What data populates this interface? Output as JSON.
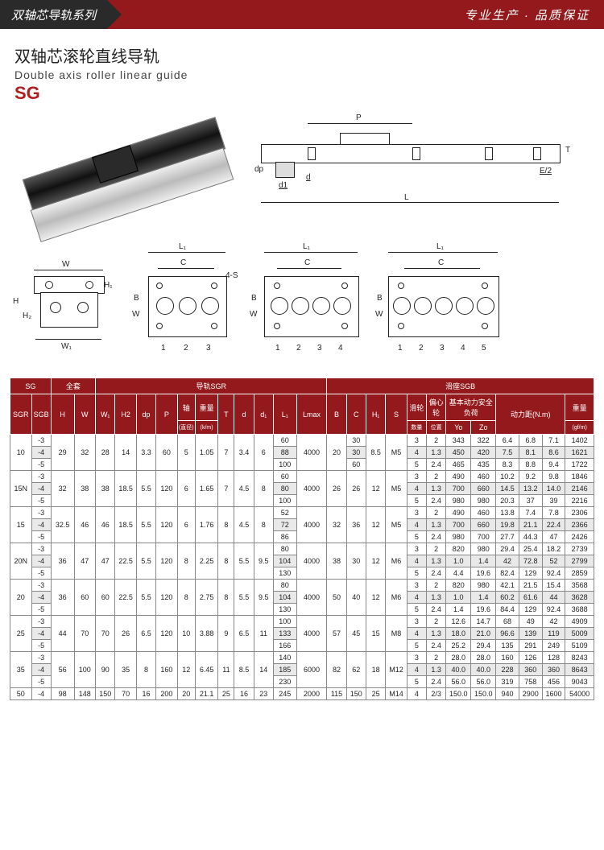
{
  "header": {
    "left": "双轴芯导轨系列",
    "right": "专业生产 · 品质保证"
  },
  "title": {
    "cn": "双轴芯滚轮直线导轨",
    "en": "Double axis roller linear guide",
    "code": "SG"
  },
  "diagramLabels": {
    "P": "P",
    "T": "T",
    "dp": "dp",
    "d1": "d1",
    "d": "d",
    "L": "L",
    "E2": "E/2",
    "W": "W",
    "W1": "W₁",
    "H": "H",
    "H1": "H₁",
    "H2": "H₂",
    "L1": "L₁",
    "C": "C",
    "B": "B",
    "S4": "4-S"
  },
  "blockNumbers": {
    "b3": [
      "1",
      "2",
      "3"
    ],
    "b4": [
      "1",
      "2",
      "3",
      "4"
    ],
    "b5": [
      "1",
      "2",
      "3",
      "4",
      "5"
    ]
  },
  "tableHeader": {
    "sg": "SG",
    "full": "全套",
    "sgr": "导轨SGR",
    "sgb": "滑座SGB",
    "sgrCol": "SGR",
    "sgbCol": "SGB",
    "H": "H",
    "W": "W",
    "W1": "W₁",
    "H2": "H2",
    "dp": "dp",
    "P": "P",
    "axis": "轴",
    "axisSub": "(直径)",
    "weight": "重量",
    "weightSub": "(k/m)",
    "T": "T",
    "d": "d",
    "d1": "d₁",
    "L1": "L₁",
    "Lmax": "Lmax",
    "B": "B",
    "C": "C",
    "H1": "H₁",
    "S": "S",
    "rollers": "滑轮",
    "rollersSub": "数量",
    "ecc": "偏心轮",
    "eccSub": "位置",
    "basic": "基本动力安全负荷",
    "Yo": "Yo",
    "Zo": "Zo",
    "torque": "动力距(N.m)",
    "wt2": "重量",
    "wt2Sub": "(gf/m)"
  },
  "rows": [
    {
      "sgr": "10",
      "sgb": [
        "-3",
        "-4",
        "-5"
      ],
      "H": "29",
      "W": "32",
      "W1": "28",
      "H2": "14",
      "dp": "3.3",
      "P": "60",
      "axis": "5",
      "wt": "1.05",
      "T": "7",
      "d": "3.4",
      "d1": "6",
      "L1": [
        "60",
        "88",
        "100"
      ],
      "Lmax": "4000",
      "B": "20",
      "C": [
        "30",
        "30",
        "60"
      ],
      "H1": "8.5",
      "S": "M5",
      "rl": [
        "3",
        "4",
        "5"
      ],
      "ec": [
        "2",
        "1.3",
        "2.4"
      ],
      "Yo": [
        "343",
        "450",
        "465"
      ],
      "Zo": [
        "322",
        "420",
        "435"
      ],
      "t1": [
        "6.4",
        "7.5",
        "8.3"
      ],
      "t2": [
        "6.8",
        "8.1",
        "8.8"
      ],
      "t3": [
        "7.1",
        "8.6",
        "9.4"
      ],
      "g": [
        "1402",
        "1621",
        "1722"
      ]
    },
    {
      "sgr": "15N",
      "sgb": [
        "-3",
        "-4",
        "-5"
      ],
      "H": "32",
      "W": "38",
      "W1": "38",
      "H2": "18.5",
      "dp": "5.5",
      "P": "120",
      "axis": "6",
      "wt": "1.65",
      "T": "7",
      "d": "4.5",
      "d1": "8",
      "L1": [
        "60",
        "80",
        "100"
      ],
      "Lmax": "4000",
      "B": "26",
      "C": "26",
      "H1": "12",
      "S": "M5",
      "rl": [
        "3",
        "4",
        "5"
      ],
      "ec": [
        "2",
        "1.3",
        "2.4"
      ],
      "Yo": [
        "490",
        "700",
        "980"
      ],
      "Zo": [
        "460",
        "660",
        "980"
      ],
      "t1": [
        "10.2",
        "14.5",
        "20.3"
      ],
      "t2": [
        "9.2",
        "13.2",
        "37"
      ],
      "t3": [
        "9.8",
        "14.0",
        "39"
      ],
      "g": [
        "1846",
        "2146",
        "2216"
      ]
    },
    {
      "sgr": "15",
      "sgb": [
        "-3",
        "-4",
        "-5"
      ],
      "H": "32.5",
      "W": "46",
      "W1": "46",
      "H2": "18.5",
      "dp": "5.5",
      "P": "120",
      "axis": "6",
      "wt": "1.76",
      "T": "8",
      "d": "4.5",
      "d1": "8",
      "L1": [
        "52",
        "72",
        "86"
      ],
      "Lmax": "4000",
      "B": "32",
      "C": "36",
      "H1": "12",
      "S": "M5",
      "rl": [
        "3",
        "4",
        "5"
      ],
      "ec": [
        "2",
        "1.3",
        "2.4"
      ],
      "Yo": [
        "490",
        "700",
        "980"
      ],
      "Zo": [
        "460",
        "660",
        "700"
      ],
      "t1": [
        "13.8",
        "19.8",
        "27.7"
      ],
      "t2": [
        "7.4",
        "21.1",
        "44.3"
      ],
      "t3": [
        "7.8",
        "22.4",
        "47"
      ],
      "g": [
        "2306",
        "2366",
        "2426"
      ]
    },
    {
      "sgr": "20N",
      "sgb": [
        "-3",
        "-4",
        "-5"
      ],
      "H": "36",
      "W": "47",
      "W1": "47",
      "H2": "22.5",
      "dp": "5.5",
      "P": "120",
      "axis": "8",
      "wt": "2.25",
      "T": "8",
      "d": "5.5",
      "d1": "9.5",
      "L1": [
        "80",
        "104",
        "130"
      ],
      "Lmax": "4000",
      "B": "38",
      "C": "30",
      "H1": "12",
      "S": "M6",
      "rl": [
        "3",
        "4",
        "5"
      ],
      "ec": [
        "2",
        "1.3",
        "2.4"
      ],
      "Yo": [
        "820",
        "1.0",
        "4.4"
      ],
      "Zo": [
        "980",
        "1.4",
        "19.6"
      ],
      "t1": [
        "29.4",
        "42",
        "82.4"
      ],
      "t2": [
        "25.4",
        "72.8",
        "129"
      ],
      "t3": [
        "18.2",
        "52",
        "92.4"
      ],
      "g": [
        "2739",
        "2799",
        "2859"
      ]
    },
    {
      "sgr": "20",
      "sgb": [
        "-3",
        "-4",
        "-5"
      ],
      "H": "36",
      "W": "60",
      "W1": "60",
      "H2": "22.5",
      "dp": "5.5",
      "P": "120",
      "axis": "8",
      "wt": "2.75",
      "T": "8",
      "d": "5.5",
      "d1": "9.5",
      "L1": [
        "80",
        "104",
        "130"
      ],
      "Lmax": "4000",
      "B": "50",
      "C": "40",
      "H1": "12",
      "S": "M6",
      "rl": [
        "3",
        "4",
        "5"
      ],
      "ec": [
        "2",
        "1.3",
        "2.4"
      ],
      "Yo": [
        "820",
        "1.0",
        "1.4"
      ],
      "Zo": [
        "980",
        "1.4",
        "19.6"
      ],
      "t1": [
        "42.1",
        "60.2",
        "84.4"
      ],
      "t2": [
        "21.5",
        "61.6",
        "129"
      ],
      "t3": [
        "15.4",
        "44",
        "92.4"
      ],
      "g": [
        "3568",
        "3628",
        "3688"
      ]
    },
    {
      "sgr": "25",
      "sgb": [
        "-3",
        "-4",
        "-5"
      ],
      "H": "44",
      "W": "70",
      "W1": "70",
      "H2": "26",
      "dp": "6.5",
      "P": "120",
      "axis": "10",
      "wt": "3.88",
      "T": "9",
      "d": "6.5",
      "d1": "11",
      "L1": [
        "100",
        "133",
        "166"
      ],
      "Lmax": "4000",
      "B": "57",
      "C": "45",
      "H1": "15",
      "S": "M8",
      "rl": [
        "3",
        "4",
        "5"
      ],
      "ec": [
        "2",
        "1.3",
        "2.4"
      ],
      "Yo": [
        "12.6",
        "18.0",
        "25.2"
      ],
      "Zo": [
        "14.7",
        "21.0",
        "29.4"
      ],
      "t1": [
        "68",
        "96.6",
        "135"
      ],
      "t2": [
        "49",
        "139",
        "291"
      ],
      "t3": [
        "42",
        "119",
        "249"
      ],
      "g": [
        "4909",
        "5009",
        "5109"
      ]
    },
    {
      "sgr": "35",
      "sgb": [
        "-3",
        "-4",
        "-5"
      ],
      "H": "56",
      "W": "100",
      "W1": "90",
      "H2": "35",
      "dp": "8",
      "P": "160",
      "axis": "12",
      "wt": "6.45",
      "T": "11",
      "d": "8.5",
      "d1": "14",
      "L1": [
        "140",
        "185",
        "230"
      ],
      "Lmax": "6000",
      "B": "82",
      "C": "62",
      "H1": "18",
      "S": "M12",
      "rl": [
        "3",
        "4",
        "5"
      ],
      "ec": [
        "2",
        "1.3",
        "2.4"
      ],
      "Yo": [
        "28.0",
        "40.0",
        "56.0"
      ],
      "Zo": [
        "28.0",
        "40.0",
        "56.0"
      ],
      "t1": [
        "160",
        "228",
        "319"
      ],
      "t2": [
        "126",
        "360",
        "758"
      ],
      "t3": [
        "128",
        "360",
        "456"
      ],
      "g": [
        "8243",
        "8643",
        "9043"
      ]
    },
    {
      "sgr": "50",
      "sgb": [
        "-4"
      ],
      "H": "98",
      "W": "148",
      "W1": "150",
      "H2": "70",
      "dp": "16",
      "P": "200",
      "axis": "20",
      "wt": "21.1",
      "T": "25",
      "d": "16",
      "d1": "23",
      "L1": [
        "245"
      ],
      "Lmax": "2000",
      "B": "115",
      "C": "150",
      "H1": "25",
      "S": "M14",
      "rl": [
        "4"
      ],
      "ec": [
        "2/3"
      ],
      "Yo": [
        "150.0"
      ],
      "Zo": [
        "150.0"
      ],
      "t1": [
        "940"
      ],
      "t2": [
        "2900"
      ],
      "t3": [
        "1600"
      ],
      "g": [
        "54000"
      ]
    }
  ],
  "colors": {
    "headerRed": "#93191d",
    "headerDark": "#2a2a2a",
    "codeRed": "#b21d1f"
  }
}
